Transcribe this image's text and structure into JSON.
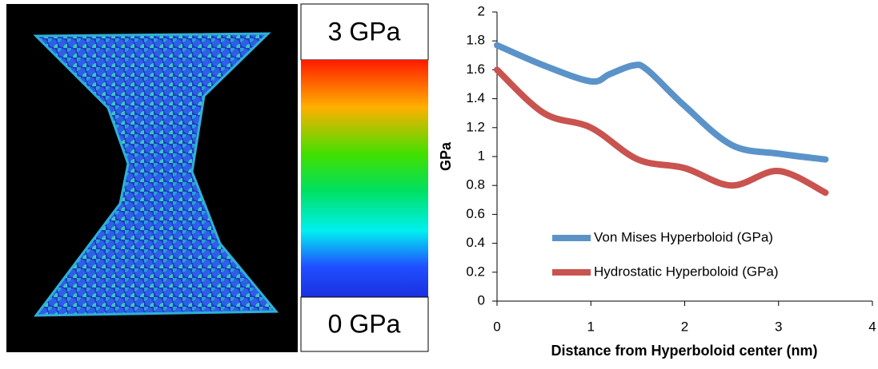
{
  "colorbar": {
    "max_label": "3 GPa",
    "min_label": "0 GPa"
  },
  "chart_data": {
    "type": "line",
    "y_label": "GPa",
    "x_label": "Distance from Hyperboloid center (nm)",
    "xlim": [
      0,
      4
    ],
    "xticks": [
      0,
      1,
      2,
      3,
      4
    ],
    "ylim": [
      0,
      2
    ],
    "yticks": [
      0,
      0.2,
      0.4,
      0.6,
      0.8,
      1,
      1.2,
      1.4,
      1.6,
      1.8,
      2
    ],
    "grid": false,
    "series": [
      {
        "name": "Von Mises Hyperboloid (GPa)",
        "color": "#5b93c9",
        "x": [
          0,
          0.5,
          1,
          1.2,
          1.45,
          1.6,
          2,
          2.5,
          3,
          3.5
        ],
        "values": [
          1.77,
          1.63,
          1.52,
          1.57,
          1.63,
          1.6,
          1.35,
          1.08,
          1.02,
          0.98
        ]
      },
      {
        "name": "Hydrostatic Hyperboloid (GPa)",
        "color": "#c9534f",
        "x": [
          0,
          0.5,
          1,
          1.5,
          2,
          2.5,
          3,
          3.5
        ],
        "values": [
          1.6,
          1.3,
          1.2,
          0.98,
          0.92,
          0.8,
          0.9,
          0.75
        ]
      }
    ]
  }
}
